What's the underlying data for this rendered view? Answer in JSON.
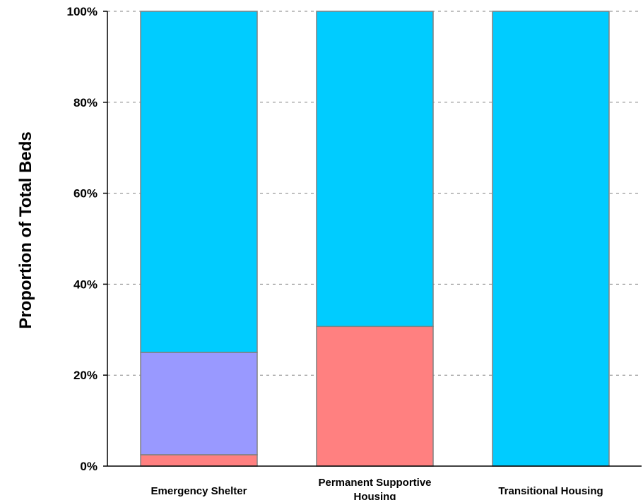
{
  "chart_data": {
    "type": "bar",
    "stacked": true,
    "normalized": true,
    "title": "",
    "xlabel": "",
    "ylabel": "Proportion of Total Beds",
    "ylim": [
      0,
      100
    ],
    "yticks": [
      "0%",
      "20%",
      "40%",
      "60%",
      "80%",
      "100%"
    ],
    "categories": [
      [
        "Emergency Shelter"
      ],
      [
        "Permanent Supportive",
        "Housing"
      ],
      [
        "Transitional Housing"
      ]
    ],
    "series": [
      {
        "color": "#ff8080",
        "values": [
          2.5,
          30.7,
          0
        ]
      },
      {
        "color": "#9999ff",
        "values": [
          22.5,
          0,
          0
        ]
      },
      {
        "color": "#00ccff",
        "values": [
          75.0,
          69.3,
          100
        ]
      }
    ],
    "grid": true,
    "legend": "none"
  }
}
